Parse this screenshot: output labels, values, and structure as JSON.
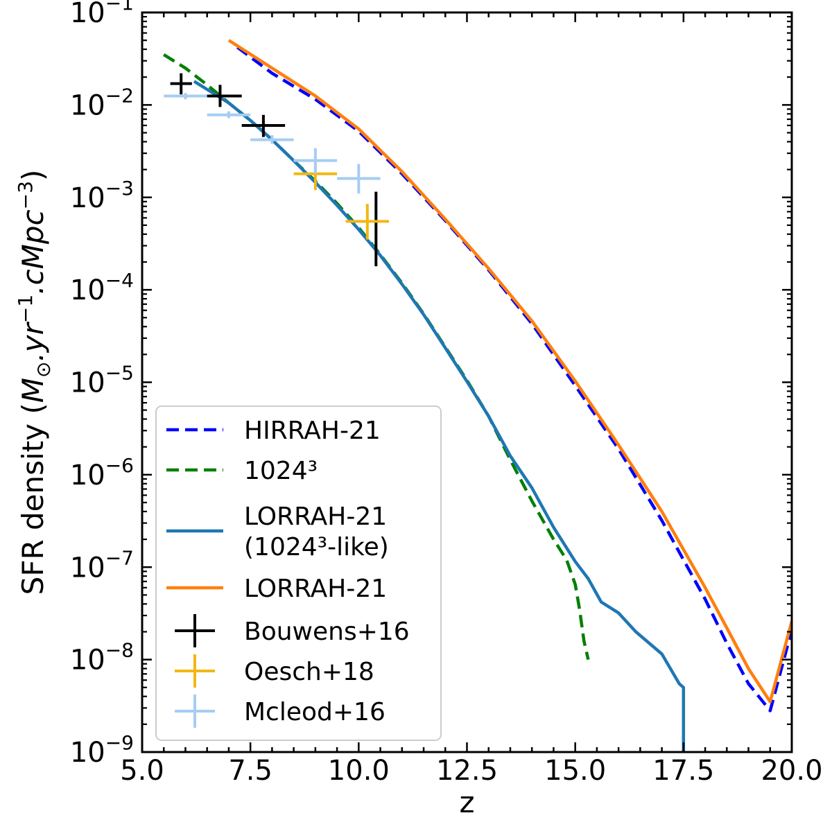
{
  "chart_data": {
    "type": "line",
    "title": "",
    "xlabel": "z",
    "ylabel_parts": [
      "SFR density (",
      "M",
      "⊙",
      ".",
      "yr",
      "−1",
      ".",
      "cMpc",
      "−3",
      ")"
    ],
    "xlim": [
      5.0,
      20.0
    ],
    "ylim": [
      1e-09,
      0.1
    ],
    "yscale": "log",
    "x_ticks": [
      5.0,
      7.5,
      10.0,
      12.5,
      15.0,
      17.5,
      20.0
    ],
    "x_tick_labels": [
      "5.0",
      "7.5",
      "10.0",
      "12.5",
      "15.0",
      "17.5",
      "20.0"
    ],
    "y_tick_exponents": [
      -9,
      -8,
      -7,
      -6,
      -5,
      -4,
      -3,
      -2,
      -1
    ],
    "y_tick_base": "10",
    "y_tick_sign": "−",
    "grid": false,
    "legend_placement": "lower-left",
    "series": [
      {
        "name": "HIRRAH-21",
        "style": "dashed",
        "color": "#0000ff",
        "x": [
          7.2,
          8,
          9,
          10,
          11,
          12,
          13,
          14,
          15,
          16,
          17,
          17.5,
          18,
          18.5,
          19,
          19.5,
          20
        ],
        "y": [
          0.042,
          0.022,
          0.0115,
          0.0052,
          0.0018,
          0.00056,
          0.000164,
          4.3e-05,
          9.2e-06,
          1.9e-06,
          3.2e-07,
          1.2e-07,
          4.5e-08,
          1.5e-08,
          5.5e-09,
          2.8e-09,
          2.1e-08
        ]
      },
      {
        "name": "1024³",
        "style": "dashed",
        "color": "#008000",
        "x": [
          5.5,
          6,
          6.5,
          7,
          7.5,
          8,
          8.5,
          9,
          9.5,
          10,
          10.5,
          11,
          11.5,
          12,
          12.5,
          13,
          13.5,
          14,
          14.5,
          14.8,
          15,
          15.1,
          15.2,
          15.3
        ],
        "y": [
          0.035,
          0.025,
          0.0165,
          0.0105,
          0.0068,
          0.0042,
          0.0025,
          0.0015,
          0.00086,
          0.00047,
          0.00024,
          0.000118,
          5.5e-05,
          2.4e-05,
          1.05e-05,
          4.3e-06,
          1.45e-06,
          5.2e-07,
          2e-07,
          1.2e-07,
          6.5e-08,
          3.5e-08,
          1.6e-08,
          1e-08
        ]
      },
      {
        "name_lines": [
          "LORRAH-21",
          "(1024³-like)"
        ],
        "style": "solid",
        "color": "#1f77b4",
        "x": [
          6.2,
          7,
          7.5,
          8,
          8.5,
          9,
          9.5,
          10,
          10.5,
          11,
          11.5,
          12,
          12.5,
          13,
          13.5,
          14,
          14.5,
          15,
          15.3,
          15.6,
          16,
          16.4,
          17,
          17.4,
          17.5,
          17.5
        ],
        "y": [
          0.018,
          0.0105,
          0.0068,
          0.0042,
          0.0025,
          0.00145,
          0.00082,
          0.00045,
          0.000235,
          0.000115,
          5.4e-05,
          2.35e-05,
          1.02e-05,
          4.3e-06,
          1.6e-06,
          7.2e-07,
          2.7e-07,
          1.15e-07,
          7.5e-08,
          4.2e-08,
          3.2e-08,
          2e-08,
          1.15e-08,
          5.5e-09,
          5e-09,
          1e-09
        ]
      },
      {
        "name": "LORRAH-21",
        "style": "solid",
        "color": "#ff7f0e",
        "x": [
          7.0,
          8,
          9,
          10,
          11,
          12,
          13,
          14,
          15,
          16,
          17,
          17.5,
          18,
          18.5,
          19,
          19.5,
          20
        ],
        "y": [
          0.05,
          0.025,
          0.0125,
          0.0055,
          0.0019,
          0.00058,
          0.00017,
          4.6e-05,
          1.03e-05,
          2.1e-06,
          4e-07,
          1.55e-07,
          6e-08,
          2.2e-08,
          8e-09,
          3.5e-09,
          2.6e-08
        ]
      }
    ],
    "observations": [
      {
        "name": "Bouwens+16",
        "color": "#000000",
        "points": [
          {
            "x": 5.9,
            "y": 0.017,
            "xerr": 0.25,
            "ylo": 0.013,
            "yhi": 0.022
          },
          {
            "x": 6.8,
            "y": 0.0125,
            "xerr": 0.5,
            "ylo": 0.0095,
            "yhi": 0.0165
          },
          {
            "x": 7.8,
            "y": 0.006,
            "xerr": 0.5,
            "ylo": 0.0045,
            "yhi": 0.0078
          },
          {
            "x": 10.4,
            "y": 0.00055,
            "xerr": 0.0,
            "ylo": 0.00018,
            "yhi": 0.00115
          }
        ]
      },
      {
        "name": "Oesch+18",
        "color": "#f2b714",
        "points": [
          {
            "x": 9.0,
            "y": 0.0018,
            "xerr": 0.5,
            "ylo": 0.0012,
            "yhi": 0.0027
          },
          {
            "x": 10.2,
            "y": 0.00055,
            "xerr": 0.5,
            "ylo": 0.00035,
            "yhi": 0.00085
          }
        ]
      },
      {
        "name": "Mcleod+16",
        "color": "#a6cdf2",
        "points": [
          {
            "x": 6.0,
            "y": 0.0125,
            "xerr": 0.5,
            "ylo": 0.0115,
            "yhi": 0.0135
          },
          {
            "x": 7.0,
            "y": 0.0078,
            "xerr": 0.5,
            "ylo": 0.0072,
            "yhi": 0.0085
          },
          {
            "x": 8.0,
            "y": 0.0042,
            "xerr": 0.5,
            "ylo": 0.0038,
            "yhi": 0.0047
          },
          {
            "x": 9.0,
            "y": 0.0025,
            "xerr": 0.5,
            "ylo": 0.0018,
            "yhi": 0.0034
          },
          {
            "x": 10.0,
            "y": 0.0016,
            "xerr": 0.5,
            "ylo": 0.0011,
            "yhi": 0.0023
          }
        ]
      }
    ]
  }
}
